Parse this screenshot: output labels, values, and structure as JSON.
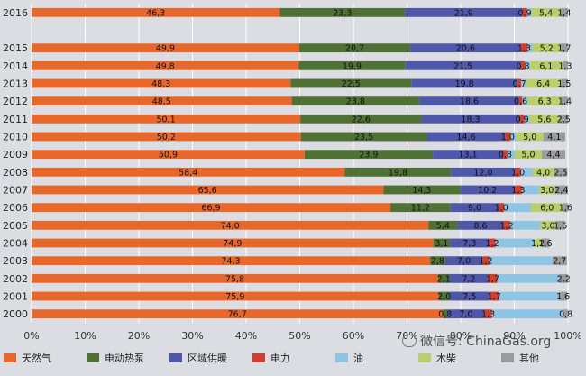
{
  "chart_data": {
    "type": "bar",
    "orientation": "horizontal",
    "stacked": true,
    "title": "",
    "xlabel": "",
    "ylabel": "",
    "xlim": [
      0,
      100
    ],
    "x_ticks": [
      "0%",
      "10%",
      "20%",
      "30%",
      "40%",
      "50%",
      "60%",
      "70%",
      "80%",
      "90%",
      "100%"
    ],
    "grid": true,
    "legend_position": "bottom",
    "categories": [
      "2016",
      "2015",
      "2014",
      "2013",
      "2012",
      "2011",
      "2010",
      "2009",
      "2008",
      "2007",
      "2006",
      "2005",
      "2004",
      "2003",
      "2002",
      "2001",
      "2000"
    ],
    "series": [
      {
        "name": "天然气",
        "color": "#e8682b",
        "values": [
          46.3,
          49.9,
          49.8,
          48.3,
          48.5,
          50.1,
          50.2,
          50.9,
          58.4,
          65.6,
          66.9,
          74.0,
          74.9,
          74.3,
          75.8,
          75.9,
          76.7
        ],
        "labels": [
          "46,3",
          "49,9",
          "49,8",
          "48,3",
          "48,5",
          "50,1",
          "50,2",
          "50,9",
          "58,4",
          "65,6",
          "66,9",
          "74,0",
          "74,9",
          "74,3",
          "75,8",
          "75,9",
          "76,7"
        ]
      },
      {
        "name": "电动热泵",
        "color": "#4f7135",
        "values": [
          23.3,
          20.7,
          19.9,
          22.5,
          23.8,
          22.6,
          23.5,
          23.9,
          19.8,
          14.3,
          11.2,
          5.4,
          3.1,
          2.8,
          2.1,
          2.0,
          0.8
        ],
        "labels": [
          "23,3",
          "20,7",
          "19,9",
          "22,5",
          "23,8",
          "22,6",
          "23,5",
          "23,9",
          "19,8",
          "14,3",
          "11,2",
          "5,4",
          "3,1",
          "2,8",
          "2,1",
          "2,0",
          "0,8"
        ]
      },
      {
        "name": "区域供暖",
        "color": "#4f57a8",
        "values": [
          21.9,
          20.6,
          21.5,
          19.8,
          18.6,
          18.3,
          14.6,
          13.1,
          12.0,
          10.2,
          9.0,
          8.6,
          7.3,
          7.0,
          7.2,
          7.5,
          7.0
        ],
        "labels": [
          "21,9",
          "20,6",
          "21,5",
          "19,8",
          "18,6",
          "18,3",
          "14,6",
          "13,1",
          "12,0",
          "10,2",
          "9,0",
          "8,6",
          "7,3",
          "7,0",
          "7,2",
          "7,5",
          "7,0"
        ]
      },
      {
        "name": "电力",
        "color": "#d23d2e",
        "values": [
          0.9,
          1.3,
          0.8,
          0.7,
          0.6,
          0.9,
          1.0,
          0.8,
          1.0,
          1.3,
          1.0,
          1.2,
          1.2,
          1.2,
          1.7,
          1.7,
          1.3
        ],
        "labels": [
          "0,9",
          "1,3",
          "0,8",
          "0,7",
          "0,6",
          "0,9",
          "1,0",
          "0,8",
          "1,0",
          "1,3",
          "1,0",
          "1,2",
          "1,2",
          "1,2",
          "1,7",
          "1,7",
          "1,3"
        ]
      },
      {
        "name": "油",
        "color": "#8ec5e5",
        "values": [
          0.8,
          0.9,
          0.9,
          0.9,
          1.0,
          0.9,
          1.1,
          1.4,
          2.2,
          3.2,
          5.0,
          5.6,
          7.3,
          11.8,
          11.6,
          11.2,
          13.4
        ],
        "labels": [
          "",
          "",
          "",
          "",
          "",
          "",
          "",
          "",
          "",
          "",
          "",
          "",
          "",
          "",
          "",
          "",
          ""
        ]
      },
      {
        "name": "木柴",
        "color": "#b8cf6c",
        "values": [
          5.4,
          5.2,
          6.1,
          6.4,
          6.3,
          5.6,
          5.0,
          5.0,
          4.0,
          3.0,
          6.0,
          3.0,
          1.2,
          0.0,
          0.0,
          0.0,
          0.0
        ],
        "labels": [
          "5,4",
          "5,2",
          "6,1",
          "6,4",
          "6,3",
          "5,6",
          "5,0",
          "5,0",
          "4,0",
          "3,0",
          "6,0",
          "3,0",
          "1,2",
          "",
          "",
          "",
          ""
        ]
      },
      {
        "name": "其他",
        "color": "#9b9b9d",
        "values": [
          1.4,
          1.7,
          1.3,
          1.5,
          1.4,
          2.5,
          4.1,
          4.4,
          2.5,
          2.4,
          1.6,
          1.6,
          1.6,
          2.7,
          2.2,
          1.6,
          0.8
        ],
        "labels": [
          "1,4",
          "1,7",
          "1,3",
          "1,5",
          "1,4",
          "2,5",
          "4,1",
          "4,4",
          "2,5",
          "2,4",
          "1,6",
          "1,6",
          "1,6",
          "2,7",
          "2,2",
          "1,6",
          "0,8"
        ]
      }
    ]
  },
  "watermark": {
    "text": "微信号: ChinaGas.org",
    "icon": "wechat-icon"
  }
}
